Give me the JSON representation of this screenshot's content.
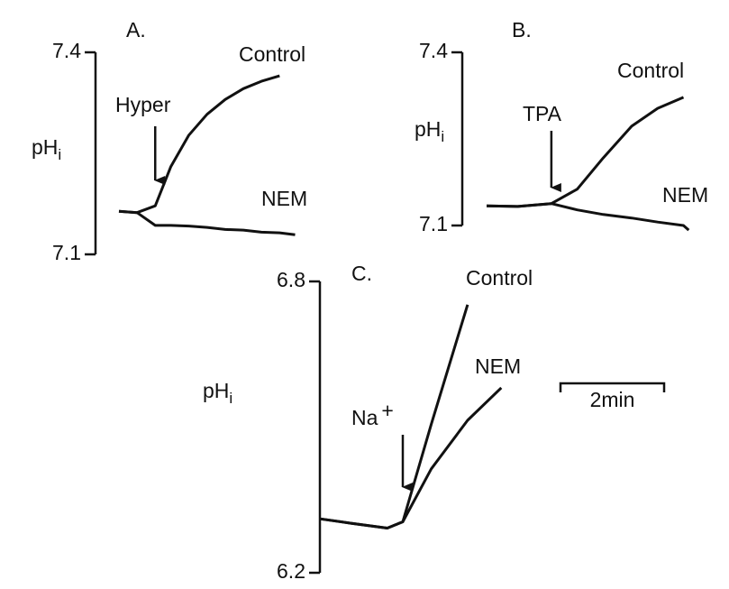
{
  "chart_data": [
    {
      "type": "line",
      "title": "A.",
      "ylabel": "pH",
      "ylabel_subscript": "i",
      "ylim": [
        7.1,
        7.4
      ],
      "yticks": [
        7.1,
        7.4
      ],
      "x": [
        0,
        0.35,
        0.7,
        1.0,
        1.35,
        1.7,
        2.05,
        2.4,
        2.75,
        3.1,
        3.4
      ],
      "series": [
        {
          "name": "Control",
          "color": "#111111",
          "values": [
            7.164,
            7.162,
            7.172,
            7.23,
            7.277,
            7.308,
            7.33,
            7.346,
            7.357,
            7.365,
            null
          ]
        },
        {
          "name": "NEM",
          "color": "#111111",
          "values": [
            7.164,
            7.162,
            7.143,
            7.143,
            7.142,
            7.14,
            7.137,
            7.136,
            7.133,
            7.132,
            7.129
          ]
        }
      ],
      "annotations": [
        {
          "text": "Hyper",
          "x": 0.7
        }
      ]
    },
    {
      "type": "line",
      "title": "B.",
      "ylabel": "pH",
      "ylabel_subscript": "i",
      "ylim": [
        7.1,
        7.4
      ],
      "yticks": [
        7.1,
        7.4
      ],
      "x": [
        0,
        0.6,
        1.25,
        1.75,
        2.25,
        2.8,
        3.3,
        3.8,
        3.9
      ],
      "series": [
        {
          "name": "Control",
          "color": "#111111",
          "values": [
            7.134,
            7.133,
            7.138,
            7.163,
            7.217,
            7.272,
            7.303,
            7.322,
            null
          ]
        },
        {
          "name": "NEM",
          "color": "#111111",
          "values": [
            7.134,
            7.133,
            7.138,
            7.127,
            7.119,
            7.113,
            7.106,
            7.1,
            7.092
          ]
        }
      ],
      "annotations": [
        {
          "text": "TPA",
          "x": 1.25
        }
      ]
    },
    {
      "type": "line",
      "title": "C.",
      "ylabel": "pH",
      "ylabel_subscript": "i",
      "ylim": [
        6.2,
        6.8
      ],
      "yticks": [
        6.2,
        6.8
      ],
      "x": [
        0,
        0.6,
        1.3,
        1.6,
        2.15,
        2.85,
        3.5
      ],
      "series": [
        {
          "name": "Control",
          "color": "#111111",
          "values": [
            6.311,
            6.302,
            6.292,
            6.305,
            6.506,
            6.752,
            null
          ]
        },
        {
          "name": "NEM",
          "color": "#111111",
          "values": [
            6.311,
            6.302,
            6.292,
            6.305,
            6.414,
            6.514,
            6.581
          ]
        }
      ],
      "annotations": [
        {
          "text": "Na",
          "superscript": "+",
          "x": 1.6
        }
      ],
      "scale_bar": {
        "value": 2,
        "label": "2min"
      }
    }
  ]
}
